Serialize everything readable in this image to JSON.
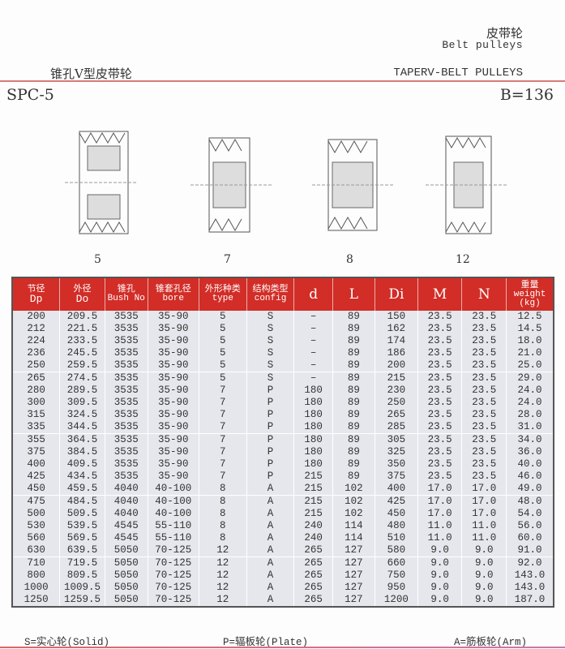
{
  "header": {
    "title_cn": "皮带轮",
    "title_en": "Belt pulleys",
    "subtitle_cn": "锥孔V型皮带轮",
    "subtitle_en": "TAPERV-BELT PULLEYS",
    "model": "SPC-5",
    "belt_width": "B=136"
  },
  "figures": [
    {
      "label": "5"
    },
    {
      "label": "7"
    },
    {
      "label": "8"
    },
    {
      "label": "12"
    }
  ],
  "table": {
    "headers": [
      {
        "cn": "节径",
        "en": "Dp"
      },
      {
        "cn": "外径",
        "en": "Do"
      },
      {
        "cn": "锥孔",
        "en": "Bush No"
      },
      {
        "cn": "锥套孔径",
        "en": "bore"
      },
      {
        "cn": "外形种类",
        "en": "type"
      },
      {
        "cn": "结构类型",
        "en": "config"
      },
      {
        "cn": "",
        "en": "d"
      },
      {
        "cn": "",
        "en": "L"
      },
      {
        "cn": "",
        "en": "Di"
      },
      {
        "cn": "",
        "en": "M"
      },
      {
        "cn": "",
        "en": "N"
      },
      {
        "cn": "重量",
        "en": "weight (kg)"
      }
    ],
    "rows": [
      [
        "200",
        "209.5",
        "3535",
        "35-90",
        "5",
        "S",
        "–",
        "89",
        "150",
        "23.5",
        "23.5",
        "12.5"
      ],
      [
        "212",
        "221.5",
        "3535",
        "35-90",
        "5",
        "S",
        "–",
        "89",
        "162",
        "23.5",
        "23.5",
        "14.5"
      ],
      [
        "224",
        "233.5",
        "3535",
        "35-90",
        "5",
        "S",
        "–",
        "89",
        "174",
        "23.5",
        "23.5",
        "18.0"
      ],
      [
        "236",
        "245.5",
        "3535",
        "35-90",
        "5",
        "S",
        "–",
        "89",
        "186",
        "23.5",
        "23.5",
        "21.0"
      ],
      [
        "250",
        "259.5",
        "3535",
        "35-90",
        "5",
        "S",
        "–",
        "89",
        "200",
        "23.5",
        "23.5",
        "25.0"
      ],
      [
        "265",
        "274.5",
        "3535",
        "35-90",
        "5",
        "S",
        "–",
        "89",
        "215",
        "23.5",
        "23.5",
        "29.0"
      ],
      [
        "280",
        "289.5",
        "3535",
        "35-90",
        "7",
        "P",
        "180",
        "89",
        "230",
        "23.5",
        "23.5",
        "24.0"
      ],
      [
        "300",
        "309.5",
        "3535",
        "35-90",
        "7",
        "P",
        "180",
        "89",
        "250",
        "23.5",
        "23.5",
        "24.0"
      ],
      [
        "315",
        "324.5",
        "3535",
        "35-90",
        "7",
        "P",
        "180",
        "89",
        "265",
        "23.5",
        "23.5",
        "28.0"
      ],
      [
        "335",
        "344.5",
        "3535",
        "35-90",
        "7",
        "P",
        "180",
        "89",
        "285",
        "23.5",
        "23.5",
        "31.0"
      ],
      [
        "355",
        "364.5",
        "3535",
        "35-90",
        "7",
        "P",
        "180",
        "89",
        "305",
        "23.5",
        "23.5",
        "34.0"
      ],
      [
        "375",
        "384.5",
        "3535",
        "35-90",
        "7",
        "P",
        "180",
        "89",
        "325",
        "23.5",
        "23.5",
        "36.0"
      ],
      [
        "400",
        "409.5",
        "3535",
        "35-90",
        "7",
        "P",
        "180",
        "89",
        "350",
        "23.5",
        "23.5",
        "40.0"
      ],
      [
        "425",
        "434.5",
        "3535",
        "35-90",
        "7",
        "P",
        "215",
        "89",
        "375",
        "23.5",
        "23.5",
        "46.0"
      ],
      [
        "450",
        "459.5",
        "4040",
        "40-100",
        "8",
        "A",
        "215",
        "102",
        "400",
        "17.0",
        "17.0",
        "49.0"
      ],
      [
        "475",
        "484.5",
        "4040",
        "40-100",
        "8",
        "A",
        "215",
        "102",
        "425",
        "17.0",
        "17.0",
        "48.0"
      ],
      [
        "500",
        "509.5",
        "4040",
        "40-100",
        "8",
        "A",
        "215",
        "102",
        "450",
        "17.0",
        "17.0",
        "54.0"
      ],
      [
        "530",
        "539.5",
        "4545",
        "55-110",
        "8",
        "A",
        "240",
        "114",
        "480",
        "11.0",
        "11.0",
        "56.0"
      ],
      [
        "560",
        "569.5",
        "4545",
        "55-110",
        "8",
        "A",
        "240",
        "114",
        "510",
        "11.0",
        "11.0",
        "60.0"
      ],
      [
        "630",
        "639.5",
        "5050",
        "70-125",
        "12",
        "A",
        "265",
        "127",
        "580",
        "9.0",
        "9.0",
        "91.0"
      ],
      [
        "710",
        "719.5",
        "5050",
        "70-125",
        "12",
        "A",
        "265",
        "127",
        "660",
        "9.0",
        "9.0",
        "92.0"
      ],
      [
        "800",
        "809.5",
        "5050",
        "70-125",
        "12",
        "A",
        "265",
        "127",
        "750",
        "9.0",
        "9.0",
        "143.0"
      ],
      [
        "1000",
        "1009.5",
        "5050",
        "70-125",
        "12",
        "A",
        "265",
        "127",
        "950",
        "9.0",
        "9.0",
        "143.0"
      ],
      [
        "1250",
        "1259.5",
        "5050",
        "70-125",
        "12",
        "A",
        "265",
        "127",
        "1200",
        "9.0",
        "9.0",
        "187.0"
      ]
    ]
  },
  "legend": {
    "solid": "S=实心轮(Solid)",
    "plate": "P=辐板轮(Plate)",
    "arm": "A=筋板轮(Arm)"
  },
  "colors": {
    "header_bg": "#d22d27",
    "row_bg": "#e6e7ec",
    "rule": "#d77a78"
  }
}
